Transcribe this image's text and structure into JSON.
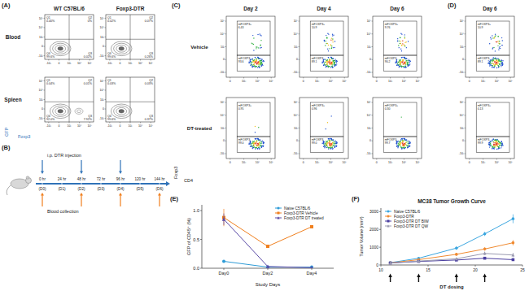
{
  "panel_labels": [
    "(A)",
    "(B)",
    "(C)",
    "(D)",
    "(E)",
    "(F)"
  ],
  "panel_a": {
    "columns": [
      "WT C57BL/6",
      "Foxp3-DTR"
    ],
    "rows": [
      "Blood",
      "Spleen"
    ],
    "x_label": "Foxp3",
    "y_label": "GFP",
    "ticks": [
      "-10³",
      "0",
      "10³",
      "10⁴",
      "10⁵"
    ],
    "plots": [
      [
        {
          "quadrants": [
            {
              "name": "Q1",
              "value": "0.40%"
            },
            {
              "name": "Q2",
              "value": "0%"
            },
            {
              "name": "Q3",
              "value": "0.02%"
            },
            {
              "name": "Q4",
              "value": "99.6%"
            }
          ]
        },
        {
          "quadrants": [
            {
              "name": "Q1",
              "value": "0.02%"
            },
            {
              "name": "Q2",
              "value": "0.07%"
            },
            {
              "name": "Q3",
              "value": "0.26%"
            },
            {
              "name": "Q4",
              "value": "99.6%"
            }
          ]
        }
      ],
      [
        {
          "quadrants": [
            {
              "name": "Q1",
              "value": "0.04%"
            },
            {
              "name": "Q2",
              "value": "0.01%"
            },
            {
              "name": "Q3",
              "value": "7.92%"
            },
            {
              "name": "Q4",
              "value": "92.0%"
            }
          ]
        },
        {
          "quadrants": [
            {
              "name": "Q1",
              "value": "0.03%"
            },
            {
              "name": "Q2",
              "value": "0.03%"
            },
            {
              "name": "Q3",
              "value": "0.37%"
            },
            {
              "name": "Q4",
              "value": "99.6%"
            }
          ]
        }
      ]
    ]
  },
  "panel_b": {
    "injection_label": "i.p. DTR injection",
    "blood_label": "Blood collection",
    "points": [
      {
        "time": "0 hr",
        "day": "(D0)",
        "injection": true,
        "blood": true
      },
      {
        "time": "24 hr",
        "day": "(D1)",
        "injection": false,
        "blood": false
      },
      {
        "time": "48 hr",
        "day": "(D2)",
        "injection": true,
        "blood": true
      },
      {
        "time": "72 hr",
        "day": "(D3)",
        "injection": false,
        "blood": false
      },
      {
        "time": "96 hr",
        "day": "(D4)",
        "injection": true,
        "blood": true
      },
      {
        "time": "120 hr",
        "day": "(D5)",
        "injection": false,
        "blood": false
      },
      {
        "time": "144 hr",
        "day": "(D6)",
        "injection": false,
        "blood": true
      }
    ]
  },
  "panel_c": {
    "days": [
      "Day 2",
      "Day 4",
      "Day 6"
    ],
    "rows": [
      "Vehicle",
      "DT-treated"
    ],
    "x_label": "CD4",
    "y_label": "Foxp3",
    "x_ticks": [
      "0",
      "10³",
      "10⁴",
      "10⁵"
    ],
    "y_ticks": [
      "-10³",
      "0",
      "10³",
      "10⁴",
      "10⁵"
    ],
    "gate_names": [
      "mFOXP3+",
      "mFOXP3-"
    ],
    "plots": [
      [
        {
          "pos": "6.43",
          "neg": "93.6"
        },
        {
          "pos": "10.9",
          "neg": "89.1"
        },
        {
          "pos": "9.76",
          "neg": "90.2"
        }
      ],
      [
        {
          "pos": "0.95",
          "neg": "99.0"
        },
        {
          "pos": "0.96",
          "neg": "99.0"
        },
        {
          "pos": "0.30",
          "neg": "99.7"
        }
      ]
    ]
  },
  "panel_d": {
    "day": "Day 6",
    "plots": [
      {
        "pos": "10.9",
        "neg": "89.1"
      },
      {
        "pos": "0.13",
        "neg": "99.9"
      }
    ]
  },
  "chart_data": [
    {
      "type": "line",
      "x_label": "Study Days",
      "y_label": "GFP of CD45⁺ (%)",
      "categories": [
        "Day0",
        "Day2",
        "Day4"
      ],
      "ylim": [
        0,
        1.1
      ],
      "yticks": [
        {
          "value": 0,
          "label": "0.0"
        },
        {
          "value": 0.5,
          "label": "0.5"
        },
        {
          "value": 1,
          "label": "1.0"
        }
      ],
      "legend": "upper right",
      "series": [
        {
          "name": "Naive C57BL/6",
          "color": "#2e9bd6",
          "marker": "circle",
          "values": [
            0.12,
            0.02,
            0.02
          ],
          "errors": [
            0.01,
            0.005,
            0.005
          ]
        },
        {
          "name": "Foxp3-DTR Vehicle",
          "color": "#f07f1e",
          "marker": "square",
          "values": [
            0.88,
            0.38,
            0.72
          ],
          "errors": [
            0.15,
            0.02,
            0.02
          ]
        },
        {
          "name": "Foxp3-DTR DT treated",
          "color": "#5a4aa6",
          "marker": "triangle",
          "values": [
            0.85,
            0.03,
            0.01
          ],
          "errors": [
            0.1,
            0.01,
            0.005
          ]
        }
      ]
    },
    {
      "type": "line",
      "title": "MC38 Tumor Growth Curve",
      "x_label": "DT dosing",
      "y_label": "Tumor Volume (mm³)",
      "x": [
        11,
        14,
        18,
        21,
        24
      ],
      "xlim": [
        10,
        25
      ],
      "xticks": [
        10,
        15,
        20,
        25
      ],
      "ylim": [
        0,
        3200
      ],
      "yticks": [
        0,
        1000,
        2000,
        3000
      ],
      "legend": "upper left",
      "dosing_days": [
        11,
        14,
        18,
        21
      ],
      "series": [
        {
          "name": "Naive C57BL/6",
          "color": "#3aa6e0",
          "marker": "circle",
          "values": [
            130,
            380,
            950,
            1750,
            2600
          ],
          "errors": [
            20,
            50,
            100,
            120,
            250
          ]
        },
        {
          "name": "Foxp3-DTR",
          "color": "#f08a30",
          "marker": "circle",
          "values": [
            120,
            300,
            600,
            900,
            1250
          ],
          "errors": [
            15,
            40,
            80,
            100,
            150
          ]
        },
        {
          "name": "Foxp3-DTR DT BIW",
          "color": "#4a3ea0",
          "marker": "square",
          "values": [
            110,
            200,
            280,
            380,
            300
          ],
          "errors": [
            10,
            30,
            40,
            60,
            60
          ]
        },
        {
          "name": "Foxp3-DTR DT QW",
          "color": "#9a9ab0",
          "marker": "triangle",
          "values": [
            110,
            220,
            350,
            650,
            560
          ],
          "errors": [
            10,
            30,
            60,
            100,
            120
          ]
        }
      ]
    }
  ]
}
